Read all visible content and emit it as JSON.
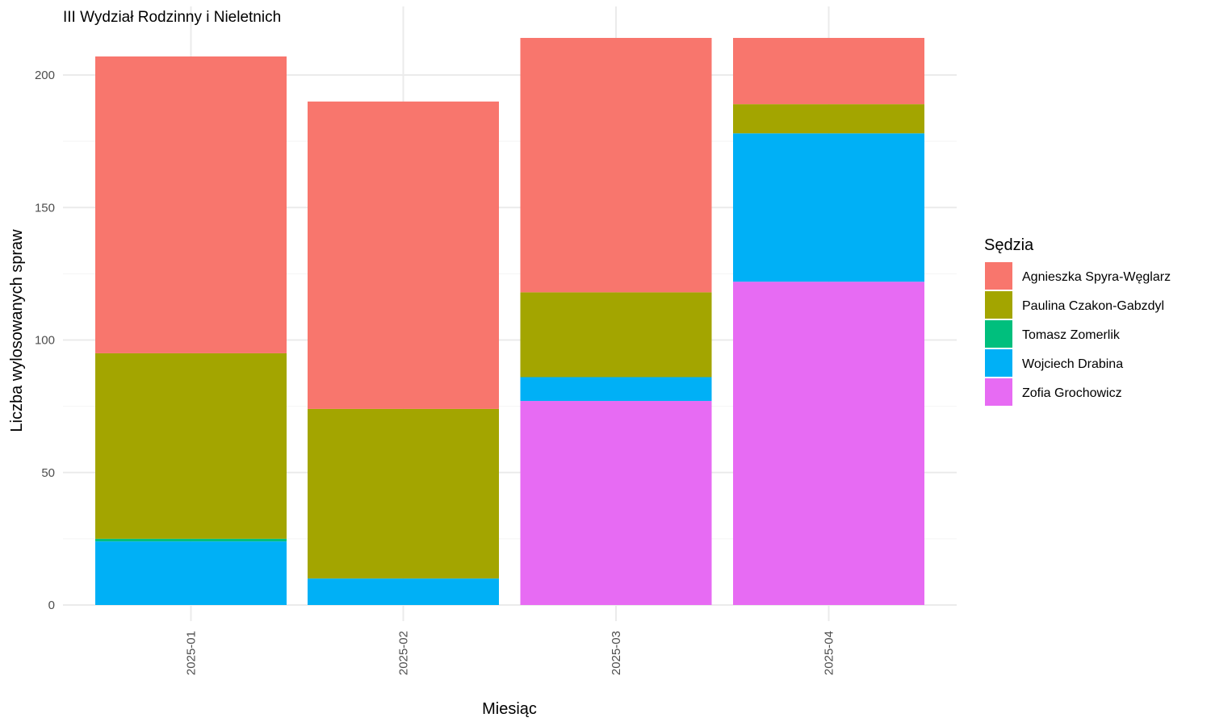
{
  "chart_data": {
    "type": "bar",
    "stacked": true,
    "title": "III Wydział Rodzinny i Nieletnich",
    "xlabel": "Miesiąc",
    "ylabel": "Liczba wylosowanych spraw",
    "ylim": [
      0,
      214
    ],
    "yticks": [
      0,
      50,
      100,
      150,
      200
    ],
    "grid": true,
    "x_tick_rotation": "vertical",
    "legend": {
      "title": "Sędzia",
      "placement": "right"
    },
    "categories": [
      "2025-01",
      "2025-02",
      "2025-03",
      "2025-04"
    ],
    "series": [
      {
        "name": "Zofia Grochowicz",
        "color": "#E76BF3",
        "values": [
          0,
          0,
          77,
          122
        ]
      },
      {
        "name": "Wojciech Drabina",
        "color": "#00B0F6",
        "values": [
          24,
          10,
          9,
          56
        ]
      },
      {
        "name": "Tomasz Zomerlik",
        "color": "#00BF7D",
        "values": [
          1,
          0,
          0,
          0
        ]
      },
      {
        "name": "Paulina Czakon-Gabzdyl",
        "color": "#A3A500",
        "values": [
          70,
          64,
          32,
          11
        ]
      },
      {
        "name": "Agnieszka Spyra-Węglarz",
        "color": "#F8766D",
        "values": [
          112,
          116,
          96,
          25
        ]
      }
    ],
    "legend_order": [
      "Agnieszka Spyra-Węglarz",
      "Paulina Czakon-Gabzdyl",
      "Tomasz Zomerlik",
      "Wojciech Drabina",
      "Zofia Grochowicz"
    ]
  }
}
